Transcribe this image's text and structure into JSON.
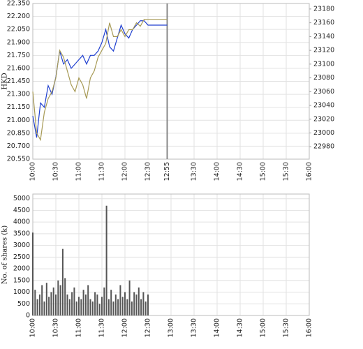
{
  "chart_data": [
    {
      "type": "line",
      "y_label": "HKD",
      "x": [
        600,
        605,
        610,
        615,
        620,
        625,
        630,
        635,
        640,
        645,
        650,
        655,
        660,
        665,
        670,
        675,
        680,
        685,
        690,
        695,
        700,
        705,
        710,
        715,
        720,
        725,
        730,
        735,
        740,
        745,
        750,
        775
      ],
      "series": [
        {
          "color": "#1f3fcf",
          "values": [
            21.05,
            20.8,
            21.2,
            21.15,
            21.4,
            21.3,
            21.5,
            21.8,
            21.65,
            21.7,
            21.6,
            21.65,
            21.7,
            21.75,
            21.65,
            21.75,
            21.75,
            21.8,
            21.9,
            22.05,
            21.85,
            21.8,
            21.95,
            22.1,
            22.0,
            21.95,
            22.05,
            22.1,
            22.15,
            22.15,
            22.1,
            22.1
          ]
        },
        {
          "color": "#a79a55",
          "axis": "y2",
          "values": [
            23060,
            23000,
            22990,
            23030,
            23050,
            23060,
            23080,
            23120,
            23110,
            23090,
            23070,
            23060,
            23080,
            23070,
            23050,
            23080,
            23090,
            23110,
            23120,
            23130,
            23160,
            23140,
            23140,
            23150,
            23140,
            23150,
            23150,
            23160,
            23155,
            23165,
            23165,
            23165
          ]
        }
      ],
      "xlim": [
        600,
        960
      ],
      "xticks": [
        {
          "value": 600,
          "label": "10:00"
        },
        {
          "value": 630,
          "label": "10:30"
        },
        {
          "value": 660,
          "label": "11:00"
        },
        {
          "value": 690,
          "label": "11:30"
        },
        {
          "value": 720,
          "label": "12:00"
        },
        {
          "value": 750,
          "label": "12:30"
        },
        {
          "value": 775,
          "label": "12:55"
        },
        {
          "value": 810,
          "label": "13:30"
        },
        {
          "value": 840,
          "label": "14:00"
        },
        {
          "value": 870,
          "label": "14:30"
        },
        {
          "value": 900,
          "label": "15:00"
        },
        {
          "value": 930,
          "label": "15:30"
        },
        {
          "value": 960,
          "label": "16:00"
        }
      ],
      "ylim": [
        20.55,
        22.35
      ],
      "yticks": [
        {
          "value": 20.55,
          "label": "20.550"
        },
        {
          "value": 20.7,
          "label": "20.700"
        },
        {
          "value": 20.85,
          "label": "20.850"
        },
        {
          "value": 21.0,
          "label": "21.000"
        },
        {
          "value": 21.15,
          "label": "21.150"
        },
        {
          "value": 21.3,
          "label": "21.300"
        },
        {
          "value": 21.45,
          "label": "21.450"
        },
        {
          "value": 21.6,
          "label": "21.600"
        },
        {
          "value": 21.75,
          "label": "21.750"
        },
        {
          "value": 21.9,
          "label": "21.900"
        },
        {
          "value": 22.05,
          "label": "22.050"
        },
        {
          "value": 22.2,
          "label": "22.200"
        },
        {
          "value": 22.35,
          "label": "22.350"
        }
      ],
      "y2lim": [
        22962,
        23188
      ],
      "y2ticks": [
        22980,
        23000,
        23020,
        23040,
        23060,
        23080,
        23100,
        23120,
        23140,
        23160,
        23180
      ],
      "grid": true
    },
    {
      "type": "bar",
      "y_label": "No. of shares (k)",
      "color": "#555555",
      "x": [
        600,
        603,
        606,
        609,
        612,
        615,
        618,
        621,
        624,
        627,
        630,
        633,
        636,
        639,
        642,
        645,
        648,
        651,
        654,
        657,
        660,
        663,
        666,
        669,
        672,
        675,
        678,
        681,
        684,
        687,
        690,
        693,
        696,
        699,
        702,
        705,
        708,
        711,
        714,
        717,
        720,
        723,
        726,
        729,
        732,
        735,
        738,
        741,
        744,
        747,
        750
      ],
      "values": [
        3550,
        1100,
        700,
        900,
        1300,
        600,
        1400,
        800,
        1000,
        1200,
        900,
        1500,
        1300,
        2850,
        1600,
        900,
        700,
        1000,
        1200,
        600,
        800,
        700,
        1100,
        900,
        1300,
        700,
        600,
        1000,
        900,
        500,
        800,
        1200,
        4700,
        700,
        1100,
        600,
        900,
        700,
        1300,
        800,
        1000,
        700,
        1500,
        600,
        1000,
        900,
        1200,
        700,
        1000,
        600,
        900
      ],
      "xlim": [
        600,
        960
      ],
      "xticks": [
        {
          "value": 600,
          "label": "10:00"
        },
        {
          "value": 630,
          "label": "10:30"
        },
        {
          "value": 660,
          "label": "11:00"
        },
        {
          "value": 690,
          "label": "11:30"
        },
        {
          "value": 720,
          "label": "12:00"
        },
        {
          "value": 750,
          "label": "12:30"
        },
        {
          "value": 780,
          "label": "13:00"
        },
        {
          "value": 810,
          "label": "13:30"
        },
        {
          "value": 840,
          "label": "14:00"
        },
        {
          "value": 870,
          "label": "14:30"
        },
        {
          "value": 900,
          "label": "15:00"
        },
        {
          "value": 930,
          "label": "15:30"
        },
        {
          "value": 960,
          "label": "16:00"
        }
      ],
      "ylim": [
        0,
        5200
      ],
      "yticks": [
        0,
        500,
        1000,
        1500,
        2000,
        2500,
        3000,
        3500,
        4000,
        4500,
        5000
      ],
      "grid": true
    }
  ]
}
